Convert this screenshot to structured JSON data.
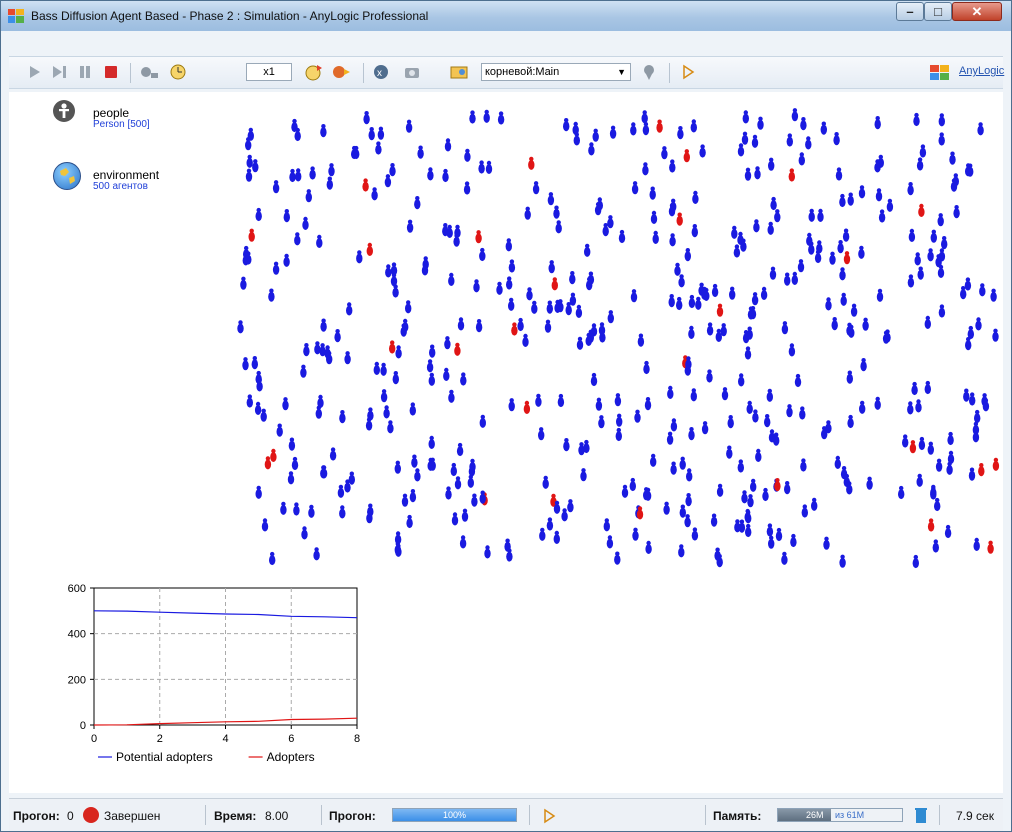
{
  "window": {
    "title": "Bass Diffusion Agent Based - Phase 2 : Simulation - AnyLogic Professional"
  },
  "toolbar": {
    "speed": "x1",
    "agent_selector": "корневой:Main",
    "brand": "AnyLogic"
  },
  "panel": {
    "vars": [
      {
        "name": "people",
        "sub": "Person [500]",
        "icon": "person-icon"
      },
      {
        "name": "environment",
        "sub": "500 агентов",
        "icon": "globe-icon"
      }
    ]
  },
  "colors": {
    "potential": "#1a1ae0",
    "adopter": "#e01515",
    "accent": "#3b8fe8"
  },
  "agents_view": {
    "agent_count": 500,
    "adopter_count": 30,
    "colors": {
      "potential": "#1a1ae0",
      "adopter": "#e01515"
    }
  },
  "chart_data": {
    "type": "line",
    "x": [
      0,
      1,
      2,
      3,
      4,
      5,
      6,
      7,
      8
    ],
    "series": [
      {
        "name": "Potential adopters",
        "color": "#1a1ae0",
        "values": [
          500,
          499,
          494,
          490,
          486,
          484,
          476,
          474,
          470
        ]
      },
      {
        "name": "Adopters",
        "color": "#e01515",
        "values": [
          0,
          1,
          6,
          10,
          14,
          16,
          24,
          26,
          30
        ]
      }
    ],
    "xticks": [
      0,
      2,
      4,
      6,
      8
    ],
    "yticks": [
      0,
      200,
      400,
      600
    ],
    "xlim": [
      0,
      8
    ],
    "ylim": [
      0,
      600
    ],
    "grid": true,
    "legend": "bottom"
  },
  "statusbar": {
    "run_label": "Прогон:",
    "run_value": "0",
    "run_state": "Завершен",
    "time_label": "Время:",
    "time_value": "8.00",
    "progress_label": "Прогон:",
    "progress_text": "100%",
    "progress": 1.0,
    "memory_label": "Память:",
    "memory_used": "26M",
    "memory_of": "из 61M",
    "memory_fraction": 0.43,
    "elapsed": "7.9 сек"
  }
}
